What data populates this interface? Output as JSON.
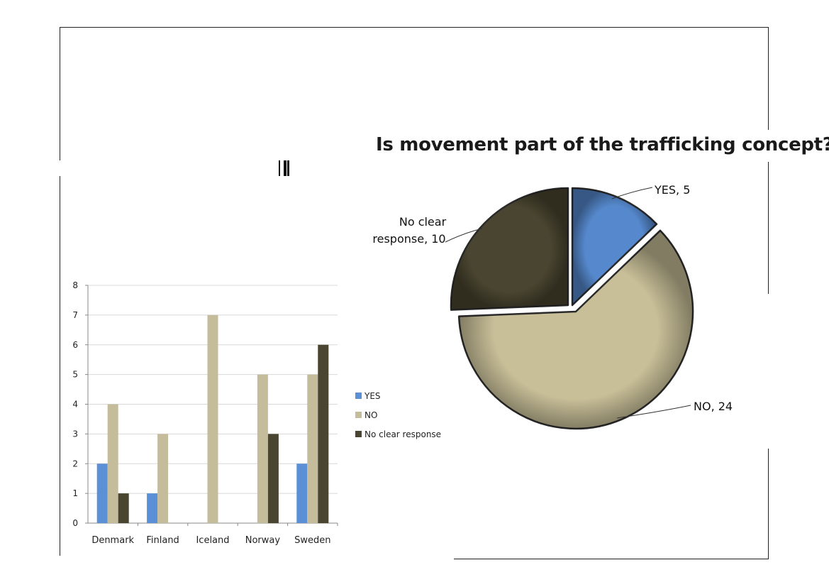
{
  "pie_title": "Is movement part of the trafficking concept?",
  "colors": {
    "yes": "#5588cc",
    "no": "#c8bf98",
    "no_clear": "#4a4530"
  },
  "chart_data": [
    {
      "type": "bar",
      "categories": [
        "Denmark",
        "Finland",
        "Iceland",
        "Norway",
        "Sweden"
      ],
      "series": [
        {
          "name": "YES",
          "values": [
            2,
            1,
            0,
            0,
            2
          ],
          "color": "#5b8fd6"
        },
        {
          "name": "NO",
          "values": [
            4,
            3,
            7,
            5,
            5
          ],
          "color": "#c4bc9b"
        },
        {
          "name": "No clear response",
          "values": [
            1,
            0,
            0,
            3,
            6
          ],
          "color": "#4a4530"
        }
      ],
      "y_ticks": [
        "0",
        "1",
        "2",
        "3",
        "4",
        "5",
        "6",
        "7",
        "8"
      ],
      "ylim": [
        0,
        8
      ],
      "grid": true,
      "legend_placement": "right"
    },
    {
      "type": "pie",
      "title": "Is movement part of the trafficking concept?",
      "slices": [
        {
          "label": "YES",
          "value": 5,
          "data_label": "YES, 5",
          "color": "#5588cc"
        },
        {
          "label": "NO",
          "value": 24,
          "data_label": "NO, 24",
          "color": "#c8bf98"
        },
        {
          "label": "No clear response",
          "value": 10,
          "data_label_line1": "No clear",
          "data_label_line2": "response, 10",
          "color": "#4a4530"
        }
      ]
    }
  ]
}
